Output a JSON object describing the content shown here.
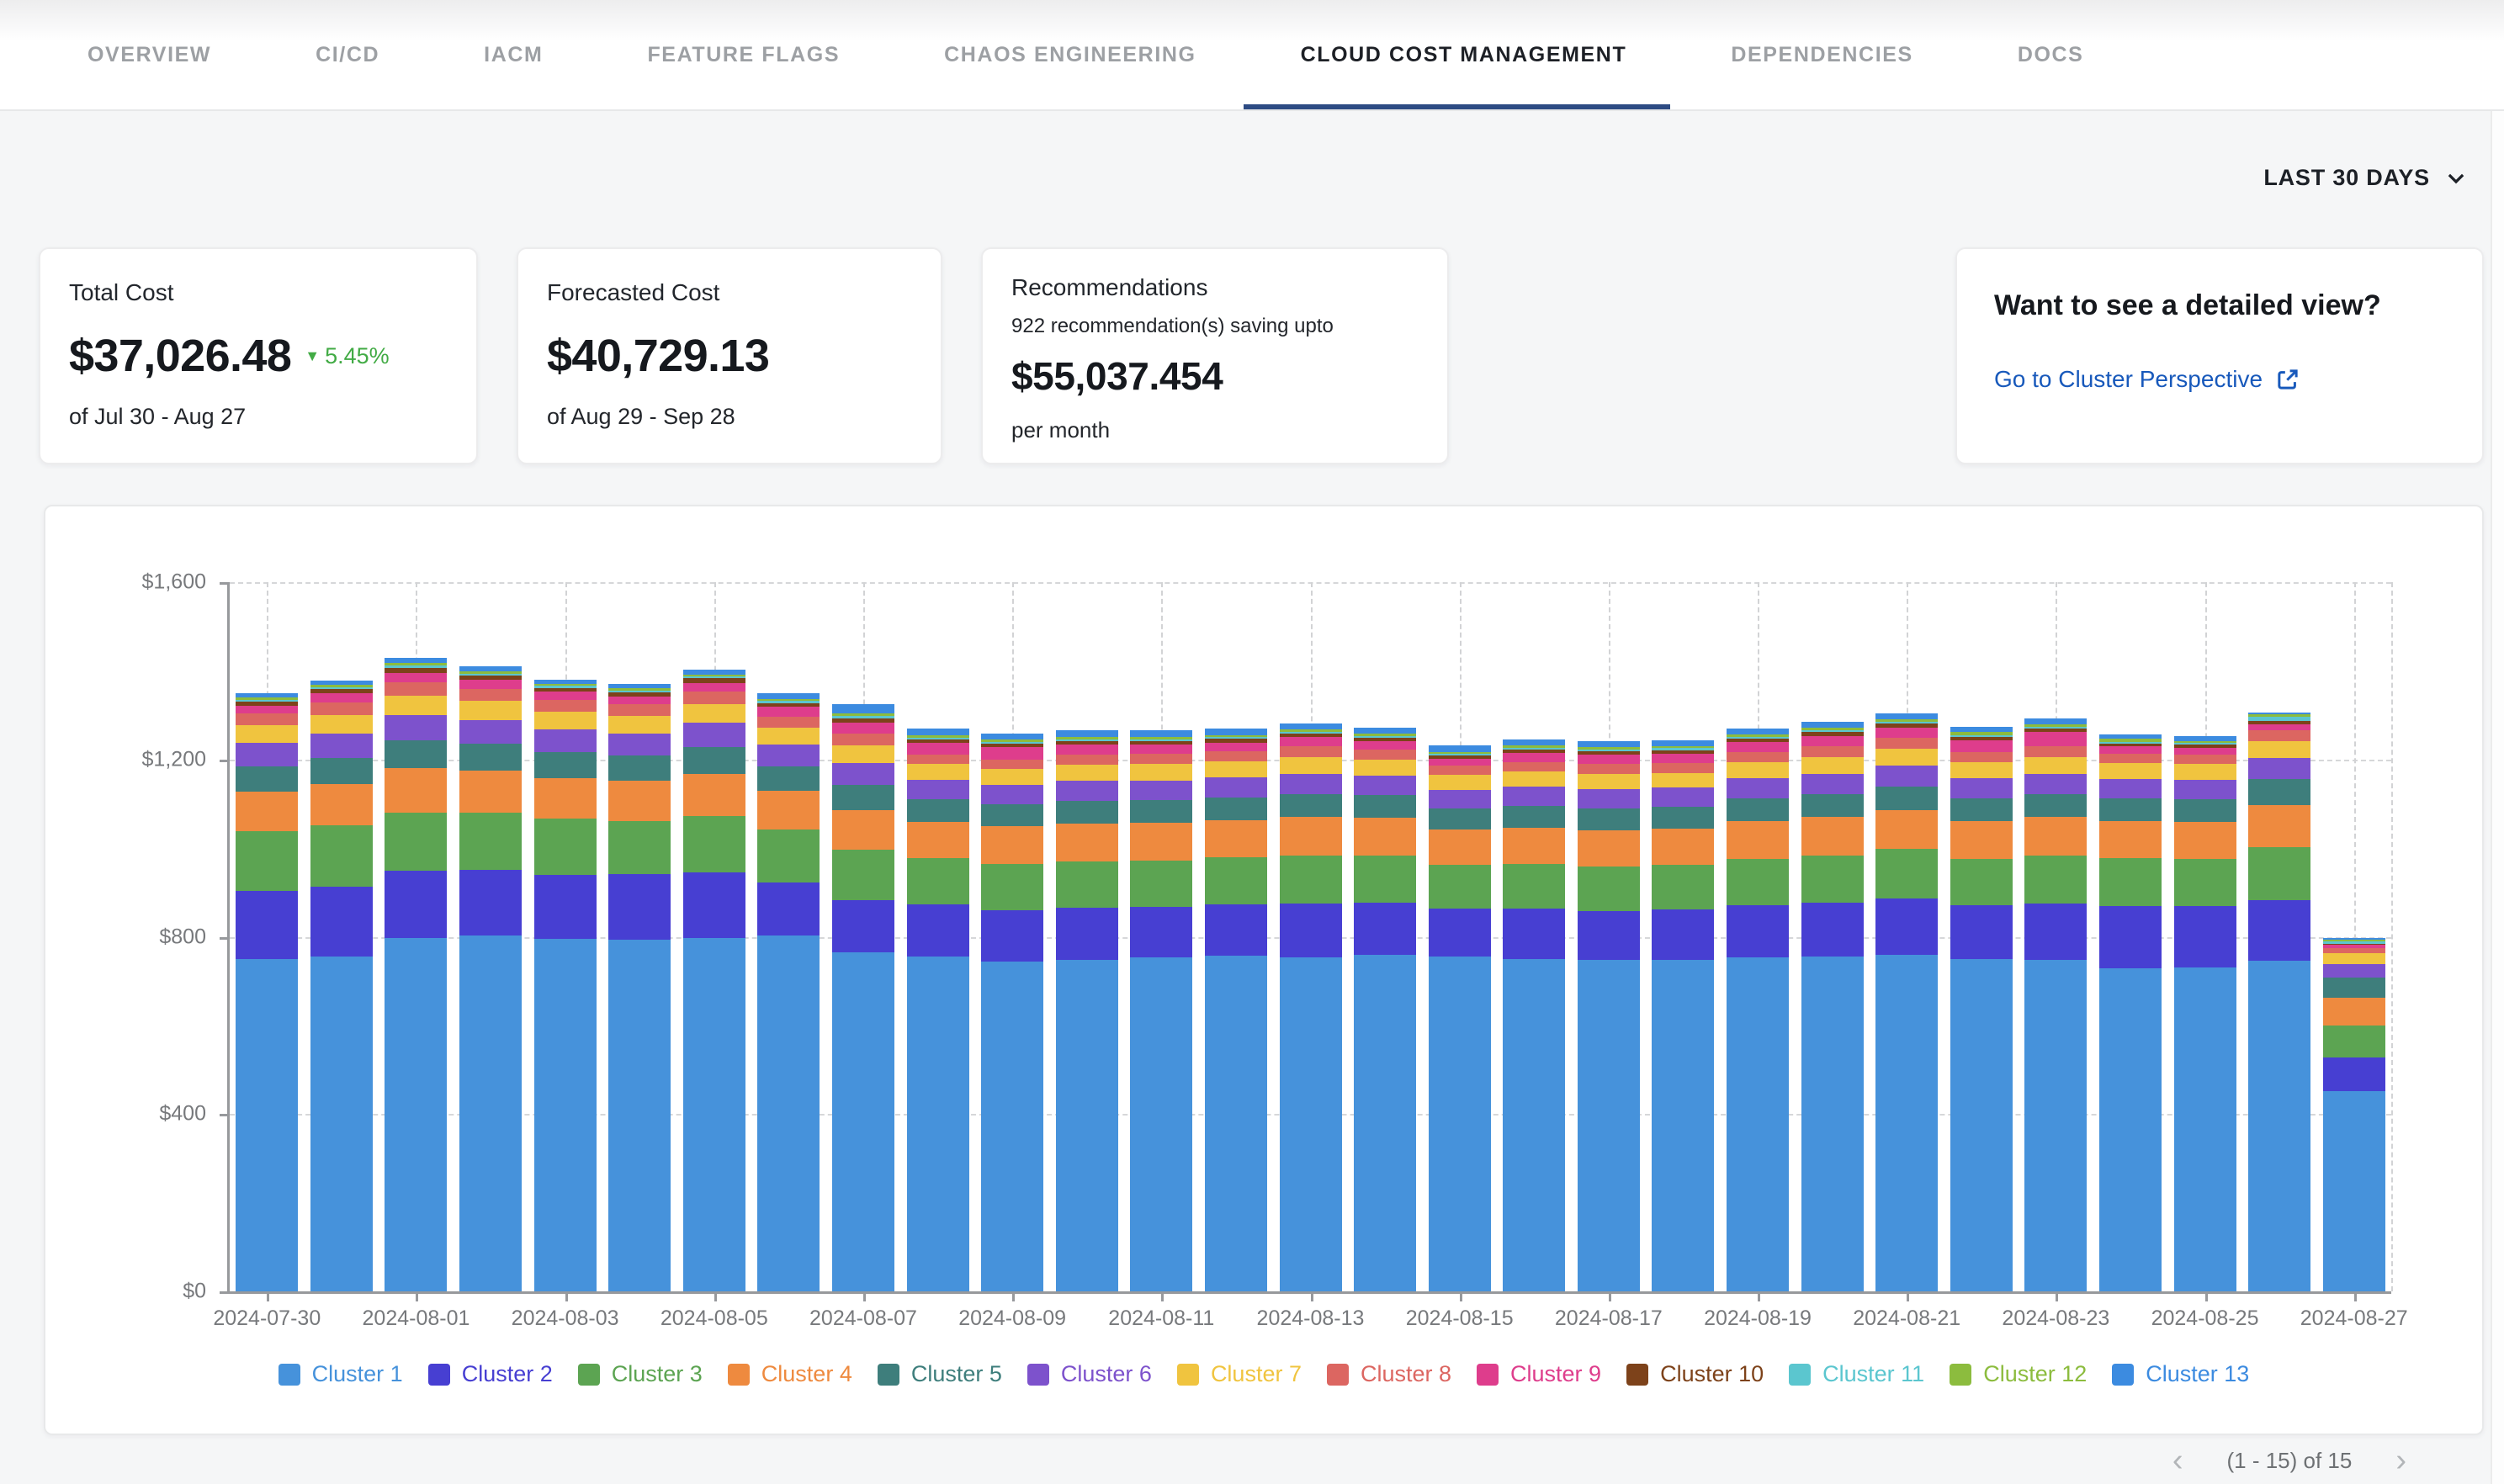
{
  "nav": {
    "tabs": [
      {
        "label": "OVERVIEW",
        "active": false
      },
      {
        "label": "CI/CD",
        "active": false
      },
      {
        "label": "IACM",
        "active": false
      },
      {
        "label": "FEATURE FLAGS",
        "active": false
      },
      {
        "label": "CHAOS ENGINEERING",
        "active": false
      },
      {
        "label": "CLOUD COST MANAGEMENT",
        "active": true
      },
      {
        "label": "DEPENDENCIES",
        "active": false
      },
      {
        "label": "DOCS",
        "active": false
      }
    ],
    "active_underline_color": "#2d4b83"
  },
  "time_filter": {
    "label": "LAST 30 DAYS"
  },
  "cards": {
    "total_cost": {
      "title": "Total Cost",
      "value": "$37,026.48",
      "trend_arrow": "▼",
      "trend_value": "5.45%",
      "trend_color": "#42ab45",
      "period": "of Jul 30 - Aug 27"
    },
    "forecasted_cost": {
      "title": "Forecasted Cost",
      "value": "$40,729.13",
      "period": "of Aug 29 - Sep 28"
    },
    "recommendations": {
      "title": "Recommendations",
      "subtitle": "922 recommendation(s) saving upto",
      "value": "$55,037.454",
      "suffix": "per month"
    },
    "detail_view": {
      "title": "Want to see a detailed view?",
      "link_label": "Go to Cluster Perspective",
      "link_color": "#1859bb"
    }
  },
  "chart_data": {
    "type": "bar",
    "stacked": true,
    "grid": "dashed",
    "legend_position": "bottom",
    "ylim": [
      0,
      1600
    ],
    "y_ticks": [
      {
        "value": 0,
        "label": "$0"
      },
      {
        "value": 400,
        "label": "$400"
      },
      {
        "value": 800,
        "label": "$800"
      },
      {
        "value": 1200,
        "label": "$1,200"
      },
      {
        "value": 1600,
        "label": "$1,600"
      }
    ],
    "x": [
      "2024-07-30",
      "2024-07-31",
      "2024-08-01",
      "2024-08-02",
      "2024-08-03",
      "2024-08-04",
      "2024-08-05",
      "2024-08-06",
      "2024-08-07",
      "2024-08-08",
      "2024-08-09",
      "2024-08-10",
      "2024-08-11",
      "2024-08-12",
      "2024-08-13",
      "2024-08-14",
      "2024-08-15",
      "2024-08-16",
      "2024-08-17",
      "2024-08-18",
      "2024-08-19",
      "2024-08-20",
      "2024-08-21",
      "2024-08-22",
      "2024-08-23",
      "2024-08-24",
      "2024-08-25",
      "2024-08-26",
      "2024-08-27"
    ],
    "x_label_every": 2,
    "series": [
      {
        "name": "Cluster 1",
        "color": "#4692DB",
        "values": [
          748,
          752,
          795,
          800,
          792,
          790,
          795,
          800,
          762,
          752,
          742,
          746,
          750,
          754,
          750,
          756,
          752,
          748,
          745,
          746,
          750,
          752,
          756,
          748,
          746,
          726,
          728,
          744,
          450
        ]
      },
      {
        "name": "Cluster 2",
        "color": "#473FD2",
        "values": [
          152,
          158,
          150,
          148,
          145,
          148,
          146,
          120,
          118,
          118,
          115,
          116,
          114,
          116,
          122,
          118,
          108,
          112,
          110,
          112,
          118,
          122,
          128,
          120,
          126,
          140,
          138,
          136,
          76
        ]
      },
      {
        "name": "Cluster 3",
        "color": "#5CA452",
        "values": [
          135,
          138,
          132,
          128,
          125,
          120,
          128,
          118,
          112,
          104,
          104,
          105,
          104,
          105,
          108,
          105,
          98,
          100,
          100,
          100,
          104,
          106,
          110,
          104,
          108,
          108,
          106,
          118,
          72
        ]
      },
      {
        "name": "Cluster 4",
        "color": "#EE8A3F",
        "values": [
          88,
          92,
          100,
          95,
          92,
          90,
          95,
          88,
          90,
          82,
          84,
          85,
          85,
          85,
          86,
          85,
          80,
          82,
          82,
          82,
          85,
          86,
          88,
          85,
          86,
          84,
          84,
          95,
          62
        ]
      },
      {
        "name": "Cluster 5",
        "color": "#3E7E7C",
        "values": [
          58,
          60,
          62,
          60,
          58,
          56,
          60,
          55,
          56,
          50,
          50,
          51,
          51,
          51,
          52,
          51,
          48,
          49,
          49,
          49,
          51,
          52,
          53,
          52,
          52,
          50,
          50,
          58,
          45
        ]
      },
      {
        "name": "Cluster 6",
        "color": "#7D52CC",
        "values": [
          52,
          54,
          56,
          54,
          52,
          50,
          54,
          48,
          50,
          44,
          44,
          45,
          45,
          45,
          46,
          45,
          42,
          43,
          43,
          43,
          45,
          46,
          47,
          45,
          46,
          44,
          44,
          48,
          30
        ]
      },
      {
        "name": "Cluster 7",
        "color": "#F0C43F",
        "values": [
          40,
          42,
          44,
          42,
          40,
          40,
          42,
          38,
          40,
          35,
          35,
          36,
          36,
          36,
          37,
          36,
          33,
          34,
          34,
          34,
          36,
          37,
          38,
          36,
          37,
          35,
          35,
          38,
          26
        ]
      },
      {
        "name": "Cluster 8",
        "color": "#DC6661",
        "values": [
          26,
          28,
          30,
          28,
          26,
          26,
          28,
          25,
          26,
          22,
          22,
          23,
          23,
          23,
          24,
          23,
          21,
          22,
          22,
          22,
          23,
          24,
          25,
          23,
          24,
          22,
          22,
          24,
          10
        ]
      },
      {
        "name": "Cluster 9",
        "color": "#DE3D8C",
        "values": [
          18,
          20,
          22,
          20,
          18,
          18,
          20,
          22,
          24,
          26,
          27,
          22,
          21,
          19,
          21,
          18,
          16,
          20,
          22,
          21,
          23,
          24,
          23,
          26,
          32,
          16,
          15,
          14,
          8
        ]
      },
      {
        "name": "Cluster 10",
        "color": "#7D421A",
        "values": [
          9,
          10,
          11,
          10,
          9,
          9,
          10,
          9,
          10,
          8,
          8,
          8,
          8,
          8,
          8,
          8,
          7,
          8,
          8,
          8,
          8,
          8,
          8,
          8,
          8,
          7,
          7,
          8,
          3
        ]
      },
      {
        "name": "Cluster 11",
        "color": "#5BC6CF",
        "values": [
          4,
          4,
          5,
          4,
          4,
          4,
          4,
          4,
          5,
          4,
          4,
          4,
          4,
          4,
          4,
          4,
          3,
          4,
          4,
          4,
          4,
          4,
          4,
          4,
          4,
          4,
          4,
          8,
          5
        ]
      },
      {
        "name": "Cluster 12",
        "color": "#8CBC3E",
        "values": [
          5,
          5,
          6,
          5,
          5,
          5,
          5,
          5,
          6,
          6,
          6,
          6,
          6,
          5,
          5,
          5,
          5,
          5,
          5,
          5,
          6,
          6,
          6,
          6,
          6,
          6,
          5,
          6,
          4
        ]
      },
      {
        "name": "Cluster 13",
        "color": "#3C8BE0",
        "values": [
          10,
          11,
          12,
          11,
          10,
          10,
          11,
          13,
          21,
          14,
          14,
          14,
          14,
          14,
          14,
          14,
          14,
          14,
          13,
          13,
          13,
          13,
          13,
          13,
          13,
          10,
          10,
          5,
          3
        ]
      }
    ]
  },
  "pagination": {
    "prev_icon": "‹",
    "label": "(1 - 15) of 15",
    "next_icon": "›"
  }
}
